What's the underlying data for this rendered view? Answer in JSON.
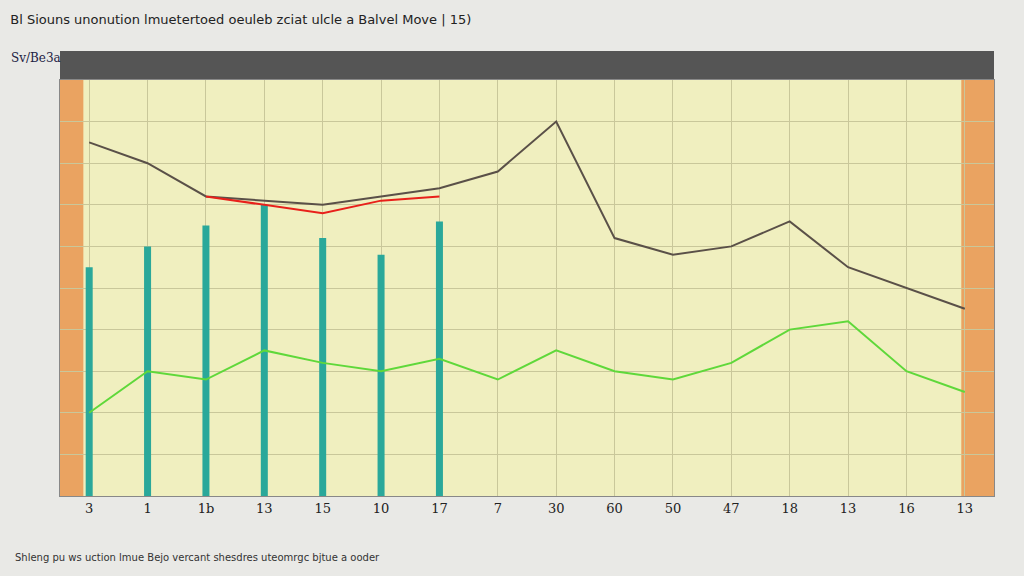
{
  "chart_data": {
    "type": "line",
    "title": "Bl Siouns unonution lmuetertoed oeuleb zciat ulcle a Balvel Move | 15)",
    "subtitle": "Sv/Be3a",
    "annotations": [
      "Shleng pu ws uction lmue Bejo vercant shesdres uteomrgc bjtue a ooder"
    ],
    "categories": [
      "3",
      "1",
      "1b",
      "13",
      "15",
      "10",
      "17",
      "7",
      "30",
      "60",
      "50",
      "47",
      "18",
      "13",
      "16",
      "13"
    ],
    "series": [
      {
        "type": "bar",
        "color": "#2aa89a",
        "values": [
          55,
          60,
          65,
          70,
          62,
          58,
          66,
          null,
          null,
          null,
          null,
          null,
          null,
          null,
          null,
          null
        ]
      },
      {
        "type": "line",
        "color": "#5a5048",
        "values": [
          85,
          80,
          72,
          71,
          70,
          72,
          74,
          78,
          90,
          62,
          58,
          60,
          66,
          55,
          50,
          45
        ]
      },
      {
        "type": "line",
        "color": "#e8201a",
        "values": [
          null,
          null,
          72,
          70,
          68,
          71,
          72,
          null,
          null,
          null,
          null,
          null,
          null,
          null,
          null,
          null
        ]
      },
      {
        "type": "line",
        "color": "#5fd83a",
        "values": [
          20,
          30,
          28,
          35,
          32,
          30,
          33,
          28,
          35,
          30,
          28,
          32,
          40,
          42,
          30,
          25
        ]
      }
    ],
    "ylim": [
      0,
      100
    ],
    "yticks": [
      0,
      10,
      20,
      30,
      40,
      50,
      60,
      70,
      80,
      90,
      100
    ],
    "grid": true,
    "tick_labels": "x"
  }
}
